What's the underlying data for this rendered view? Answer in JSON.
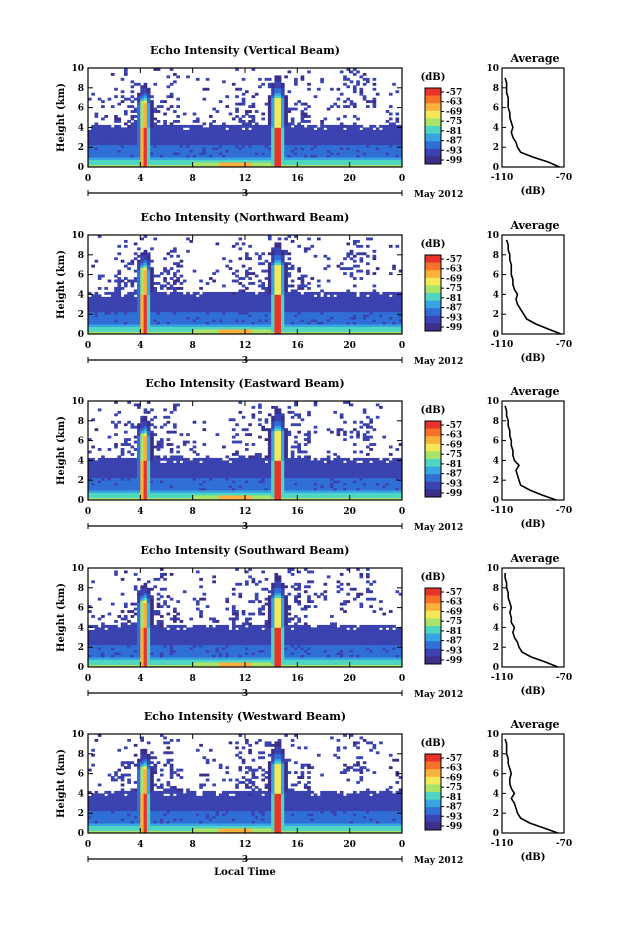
{
  "figure": {
    "xlabel": "Local Time",
    "date_label": "May 2012",
    "day_marker": "3",
    "cbar_unit": "(dB)",
    "avg_title": "Average",
    "avg_xlabel": "(dB)",
    "ylabel": "Height (km)"
  },
  "chart_data": [
    {
      "type": "heatmap",
      "title": "Echo Intensity (Vertical Beam)",
      "xlabel": "",
      "ylabel": "Height (km)",
      "xlim": [
        0,
        24
      ],
      "ylim": [
        0,
        10
      ],
      "xticks": [
        "0",
        "4",
        "8",
        "12",
        "16",
        "20",
        "0"
      ],
      "yticks": [
        "0",
        "2",
        "4",
        "6",
        "8",
        "10"
      ],
      "colorbar": {
        "label": "(dB)",
        "ticks": [
          -57,
          -63,
          -69,
          -75,
          -81,
          -87,
          -93,
          -99
        ],
        "colors": [
          "#e8332a",
          "#f6722b",
          "#fbb13c",
          "#f4e857",
          "#a9e36a",
          "#4fd6c2",
          "#38a5e3",
          "#2f6fd6",
          "#3a43b0",
          "#3b2f8a"
        ]
      },
      "profile": {
        "title": "Average",
        "xlabel": "(dB)",
        "xlim": [
          -110,
          -70
        ],
        "xticklabels": [
          "-110",
          "-70"
        ],
        "heights_km": [
          0,
          0.5,
          1,
          1.5,
          2,
          2.5,
          3,
          3.5,
          4,
          4.5,
          5,
          5.5,
          6,
          6.5,
          7,
          7.5,
          8,
          8.5,
          9
        ],
        "values_db": [
          -73,
          -80,
          -90,
          -98,
          -100,
          -101,
          -103,
          -104,
          -103,
          -104,
          -105,
          -105,
          -106,
          -106,
          -106,
          -107,
          -107,
          -107,
          -108
        ]
      }
    },
    {
      "type": "heatmap",
      "title": "Echo Intensity (Northward Beam)",
      "xlabel": "",
      "ylabel": "Height (km)",
      "xlim": [
        0,
        24
      ],
      "ylim": [
        0,
        10
      ],
      "xticks": [
        "0",
        "4",
        "8",
        "12",
        "16",
        "20",
        "0"
      ],
      "yticks": [
        "0",
        "2",
        "4",
        "6",
        "8",
        "10"
      ],
      "colorbar": {
        "label": "(dB)",
        "ticks": [
          -57,
          -63,
          -69,
          -75,
          -81,
          -87,
          -93,
          -99
        ],
        "colors": [
          "#e8332a",
          "#f6722b",
          "#fbb13c",
          "#f4e857",
          "#a9e36a",
          "#4fd6c2",
          "#38a5e3",
          "#2f6fd6",
          "#3a43b0",
          "#3b2f8a"
        ]
      },
      "profile": {
        "title": "Average",
        "xlabel": "(dB)",
        "xlim": [
          -110,
          -70
        ],
        "xticklabels": [
          "-110",
          "-70"
        ],
        "heights_km": [
          0,
          0.5,
          1,
          1.5,
          2,
          2.5,
          3,
          3.5,
          4,
          4.5,
          5,
          5.5,
          6,
          6.5,
          7,
          7.5,
          8,
          8.5,
          9,
          9.5
        ],
        "values_db": [
          -72,
          -80,
          -88,
          -94,
          -96,
          -98,
          -100,
          -101,
          -100,
          -102,
          -103,
          -103,
          -104,
          -104,
          -104,
          -105,
          -105,
          -106,
          -106,
          -107
        ]
      }
    },
    {
      "type": "heatmap",
      "title": "Echo Intensity (Eastward Beam)",
      "xlabel": "",
      "ylabel": "Height (km)",
      "xlim": [
        0,
        24
      ],
      "ylim": [
        0,
        10
      ],
      "xticks": [
        "0",
        "4",
        "8",
        "12",
        "16",
        "20",
        "0"
      ],
      "yticks": [
        "0",
        "2",
        "4",
        "6",
        "8",
        "10"
      ],
      "colorbar": {
        "label": "(dB)",
        "ticks": [
          -57,
          -63,
          -69,
          -75,
          -81,
          -87,
          -93,
          -99
        ],
        "colors": [
          "#e8332a",
          "#f6722b",
          "#fbb13c",
          "#f4e857",
          "#a9e36a",
          "#4fd6c2",
          "#38a5e3",
          "#2f6fd6",
          "#3a43b0",
          "#3b2f8a"
        ]
      },
      "profile": {
        "title": "Average",
        "xlabel": "(dB)",
        "xlim": [
          -110,
          -70
        ],
        "xticklabels": [
          "-110",
          "-70"
        ],
        "heights_km": [
          0,
          0.5,
          1,
          1.5,
          2,
          2.5,
          3,
          3.5,
          4,
          4.5,
          5,
          5.5,
          6,
          6.5,
          7,
          7.5,
          8,
          8.5,
          9,
          9.5
        ],
        "values_db": [
          -75,
          -84,
          -92,
          -98,
          -99,
          -100,
          -101,
          -99,
          -102,
          -103,
          -103,
          -104,
          -104,
          -105,
          -105,
          -106,
          -106,
          -107,
          -107,
          -108
        ]
      }
    },
    {
      "type": "heatmap",
      "title": "Echo Intensity (Southward Beam)",
      "xlabel": "",
      "ylabel": "Height (km)",
      "xlim": [
        0,
        24
      ],
      "ylim": [
        0,
        10
      ],
      "xticks": [
        "0",
        "4",
        "8",
        "12",
        "16",
        "20",
        "0"
      ],
      "yticks": [
        "0",
        "2",
        "4",
        "6",
        "8",
        "10"
      ],
      "colorbar": {
        "label": "(dB)",
        "ticks": [
          -57,
          -63,
          -69,
          -75,
          -81,
          -87,
          -93,
          -99
        ],
        "colors": [
          "#e8332a",
          "#f6722b",
          "#fbb13c",
          "#f4e857",
          "#a9e36a",
          "#4fd6c2",
          "#38a5e3",
          "#2f6fd6",
          "#3a43b0",
          "#3b2f8a"
        ]
      },
      "profile": {
        "title": "Average",
        "xlabel": "(dB)",
        "xlim": [
          -110,
          -70
        ],
        "xticklabels": [
          "-110",
          "-70"
        ],
        "heights_km": [
          0,
          0.5,
          1,
          1.5,
          2,
          2.5,
          3,
          3.5,
          4,
          4.5,
          5,
          5.5,
          6,
          6.5,
          7,
          7.5,
          8,
          8.5,
          9,
          9.5
        ],
        "values_db": [
          -74,
          -82,
          -91,
          -97,
          -99,
          -100,
          -102,
          -103,
          -102,
          -104,
          -104,
          -105,
          -104,
          -105,
          -106,
          -106,
          -107,
          -107,
          -108,
          -108
        ]
      }
    },
    {
      "type": "heatmap",
      "title": "Echo Intensity (Westward Beam)",
      "xlabel": "Local Time",
      "ylabel": "Height (km)",
      "xlim": [
        0,
        24
      ],
      "ylim": [
        0,
        10
      ],
      "xticks": [
        "0",
        "4",
        "8",
        "12",
        "16",
        "20",
        "0"
      ],
      "yticks": [
        "0",
        "2",
        "4",
        "6",
        "8",
        "10"
      ],
      "colorbar": {
        "label": "(dB)",
        "ticks": [
          -57,
          -63,
          -69,
          -75,
          -81,
          -87,
          -93,
          -99
        ],
        "colors": [
          "#e8332a",
          "#f6722b",
          "#fbb13c",
          "#f4e857",
          "#a9e36a",
          "#4fd6c2",
          "#38a5e3",
          "#2f6fd6",
          "#3a43b0",
          "#3b2f8a"
        ]
      },
      "profile": {
        "title": "Average",
        "xlabel": "(dB)",
        "xlim": [
          -110,
          -70
        ],
        "xticklabels": [
          "-110",
          "-70"
        ],
        "heights_km": [
          0,
          0.5,
          1,
          1.5,
          2,
          2.5,
          3,
          3.5,
          4,
          4.5,
          5,
          5.5,
          6,
          6.5,
          7,
          7.5,
          8,
          8.5,
          9,
          9.5
        ],
        "values_db": [
          -74,
          -83,
          -92,
          -98,
          -100,
          -101,
          -102,
          -104,
          -102,
          -104,
          -105,
          -105,
          -104,
          -105,
          -106,
          -106,
          -107,
          -107,
          -107,
          -108
        ]
      }
    }
  ]
}
